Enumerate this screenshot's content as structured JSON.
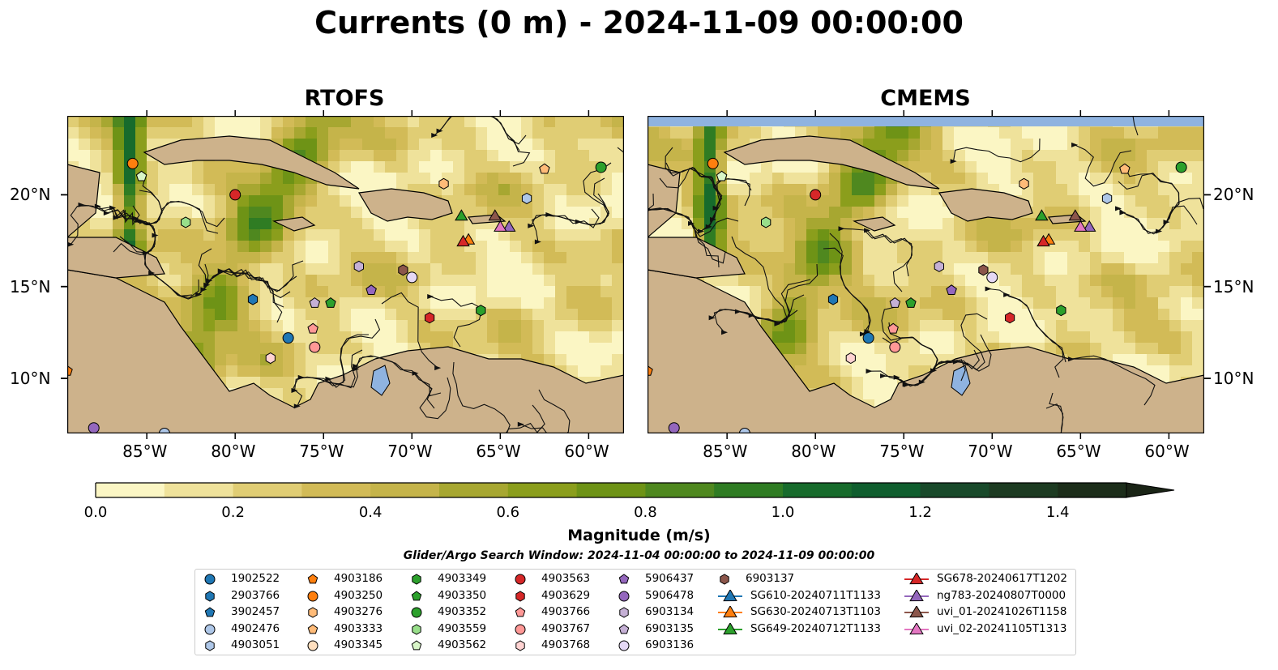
{
  "title": "Currents (0 m) - 2024-11-09 00:00:00",
  "panels": [
    {
      "title": "RTOFS"
    },
    {
      "title": "CMEMS"
    }
  ],
  "axes": {
    "x_ticks": [
      "85°W",
      "80°W",
      "75°W",
      "70°W",
      "65°W",
      "60°W"
    ],
    "y_ticks": [
      "20°N",
      "15°N",
      "10°N"
    ]
  },
  "colorbar": {
    "label": "Magnitude (m/s)",
    "tick_labels": [
      "0.0",
      "0.2",
      "0.4",
      "0.6",
      "0.8",
      "1.0",
      "1.2",
      "1.4"
    ],
    "colors": [
      "#fbf6c4",
      "#efe29b",
      "#e0cd74",
      "#d2bb57",
      "#c5b44a",
      "#a7a731",
      "#8b9e1c",
      "#6e9316",
      "#4f881f",
      "#2f7c23",
      "#176b2c",
      "#0f5e2e",
      "#18492a",
      "#1d3b22",
      "#1c2d1a",
      "#1a2416"
    ]
  },
  "search_window": "Glider/Argo Search Window: 2024-11-04 00:00:00 to 2024-11-09 00:00:00",
  "legend": {
    "columns": [
      [
        {
          "label": "1902522",
          "marker": "circle",
          "color": "#1f77b4"
        },
        {
          "label": "2903766",
          "marker": "hexagon",
          "color": "#1f77b4"
        },
        {
          "label": "3902457",
          "marker": "pentagon",
          "color": "#1f77b4"
        },
        {
          "label": "4902476",
          "marker": "circle",
          "color": "#aec7e8"
        },
        {
          "label": "4903051",
          "marker": "hexagon",
          "color": "#aec7e8"
        }
      ],
      [
        {
          "label": "4903186",
          "marker": "pentagon",
          "color": "#ff7f0e"
        },
        {
          "label": "4903250",
          "marker": "circle",
          "color": "#ff7f0e"
        },
        {
          "label": "4903276",
          "marker": "hexagon",
          "color": "#ffbb78"
        },
        {
          "label": "4903333",
          "marker": "pentagon",
          "color": "#ffbb78"
        },
        {
          "label": "4903345",
          "marker": "circle",
          "color": "#ffdfbf"
        }
      ],
      [
        {
          "label": "4903349",
          "marker": "hexagon",
          "color": "#2ca02c"
        },
        {
          "label": "4903350",
          "marker": "pentagon",
          "color": "#2ca02c"
        },
        {
          "label": "4903352",
          "marker": "circle",
          "color": "#2ca02c"
        },
        {
          "label": "4903559",
          "marker": "hexagon",
          "color": "#98df8a"
        },
        {
          "label": "4903562",
          "marker": "pentagon",
          "color": "#d8f5c8"
        }
      ],
      [
        {
          "label": "4903563",
          "marker": "circle",
          "color": "#d62728"
        },
        {
          "label": "4903629",
          "marker": "hexagon",
          "color": "#d62728"
        },
        {
          "label": "4903766",
          "marker": "pentagon",
          "color": "#ff9896"
        },
        {
          "label": "4903767",
          "marker": "circle",
          "color": "#ff9896"
        },
        {
          "label": "4903768",
          "marker": "hexagon",
          "color": "#ffd3d2"
        }
      ],
      [
        {
          "label": "5906437",
          "marker": "pentagon",
          "color": "#9467bd"
        },
        {
          "label": "5906478",
          "marker": "circle",
          "color": "#9467bd"
        },
        {
          "label": "6903134",
          "marker": "hexagon",
          "color": "#c5b0d5"
        },
        {
          "label": "6903135",
          "marker": "pentagon",
          "color": "#c5b0d5"
        },
        {
          "label": "6903136",
          "marker": "circle",
          "color": "#e5d8f5"
        }
      ],
      [
        {
          "label": "6903137",
          "marker": "hexagon",
          "color": "#8c564b"
        },
        {
          "label": "SG610-20240711T1133",
          "marker": "triangle-line",
          "color": "#1f77b4"
        },
        {
          "label": "SG630-20240713T1103",
          "marker": "triangle-line",
          "color": "#ff7f0e"
        },
        {
          "label": "SG649-20240712T1133",
          "marker": "triangle-line",
          "color": "#2ca02c"
        }
      ],
      [
        {
          "label": "SG678-20240617T1202",
          "marker": "triangle-line",
          "color": "#d62728"
        },
        {
          "label": "ng783-20240807T0000",
          "marker": "triangle-line",
          "color": "#9467bd"
        },
        {
          "label": "uvi_01-20241026T1158",
          "marker": "triangle-line",
          "color": "#8c564b"
        },
        {
          "label": "uvi_02-20241105T1313",
          "marker": "triangle-line",
          "color": "#e377c2"
        }
      ]
    ]
  },
  "chart_data": {
    "type": "heatmap",
    "variable": "surface current magnitude (m/s) with streamlines",
    "depth_m": 0,
    "time": "2024-11-09 00:00:00",
    "lon_range": [
      -89.5,
      -58
    ],
    "lat_range": [
      7,
      24.3
    ],
    "colorbar_range": [
      0.0,
      1.5
    ],
    "models": [
      "RTOFS",
      "CMEMS"
    ],
    "platforms": [
      {
        "id": "1902522",
        "lon": -77,
        "lat": 12.2
      },
      {
        "id": "2903766",
        "lon": -79,
        "lat": 14.3
      },
      {
        "id": "4902476",
        "lon": -84,
        "lat": 7.0
      },
      {
        "id": "4903051",
        "lon": -63.5,
        "lat": 19.8
      },
      {
        "id": "4903186",
        "lon": -89.5,
        "lat": 10.4
      },
      {
        "id": "4903250",
        "lon": -85.8,
        "lat": 21.7
      },
      {
        "id": "4903276",
        "lon": -68.2,
        "lat": 20.6
      },
      {
        "id": "4903333",
        "lon": -62.5,
        "lat": 21.4
      },
      {
        "id": "4903349",
        "lon": -66.1,
        "lat": 13.7
      },
      {
        "id": "4903350",
        "lon": -74.6,
        "lat": 14.1
      },
      {
        "id": "4903352",
        "lon": -59.3,
        "lat": 21.5
      },
      {
        "id": "4903559",
        "lon": -82.8,
        "lat": 18.5
      },
      {
        "id": "4903562",
        "lon": -85.3,
        "lat": 21.0
      },
      {
        "id": "4903563",
        "lon": -80.0,
        "lat": 20.0
      },
      {
        "id": "4903629",
        "lon": -69.0,
        "lat": 13.3
      },
      {
        "id": "4903766",
        "lon": -75.6,
        "lat": 12.7
      },
      {
        "id": "4903767",
        "lon": -75.5,
        "lat": 11.7
      },
      {
        "id": "4903768",
        "lon": -78.0,
        "lat": 11.1
      },
      {
        "id": "5906437",
        "lon": -72.3,
        "lat": 14.8
      },
      {
        "id": "5906478",
        "lon": -88.0,
        "lat": 7.3
      },
      {
        "id": "6903134",
        "lon": -73.0,
        "lat": 16.1
      },
      {
        "id": "6903135",
        "lon": -75.5,
        "lat": 14.1
      },
      {
        "id": "6903136",
        "lon": -70.0,
        "lat": 15.5
      },
      {
        "id": "6903137",
        "lon": -70.5,
        "lat": 15.9
      },
      {
        "id": "SG630-20240713T1103",
        "lon": -66.8,
        "lat": 17.5
      },
      {
        "id": "SG649-20240712T1133",
        "lon": -67.2,
        "lat": 18.8
      },
      {
        "id": "SG678-20240617T1202",
        "lon": -67.1,
        "lat": 17.4
      },
      {
        "id": "ng783-20240807T0000",
        "lon": -64.5,
        "lat": 18.2
      },
      {
        "id": "uvi_01-20241026T1158",
        "lon": -65.3,
        "lat": 18.8
      },
      {
        "id": "uvi_02-20241105T1313",
        "lon": -65.0,
        "lat": 18.2
      }
    ]
  }
}
